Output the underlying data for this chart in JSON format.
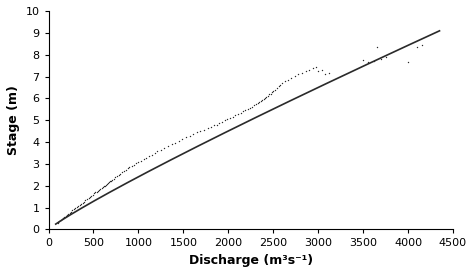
{
  "title": "",
  "xlabel": "Discharge (m³s⁻¹)",
  "ylabel": "Stage (m)",
  "xlim": [
    0,
    4500
  ],
  "ylim": [
    0,
    10
  ],
  "xticks": [
    0,
    500,
    1000,
    1500,
    2000,
    2500,
    3000,
    3500,
    4000,
    4500
  ],
  "yticks": [
    0,
    1,
    2,
    3,
    4,
    5,
    6,
    7,
    8,
    9,
    10
  ],
  "curve_color": "#2a2a2a",
  "scatter_color": "#2a2a2a",
  "background_color": "#ffffff",
  "power_a": 0.00471,
  "power_b": 0.903,
  "scatter_data": [
    [
      100,
      0.3
    ],
    [
      110,
      0.34
    ],
    [
      120,
      0.38
    ],
    [
      135,
      0.43
    ],
    [
      150,
      0.48
    ],
    [
      160,
      0.52
    ],
    [
      175,
      0.57
    ],
    [
      190,
      0.62
    ],
    [
      205,
      0.67
    ],
    [
      220,
      0.72
    ],
    [
      235,
      0.77
    ],
    [
      250,
      0.82
    ],
    [
      265,
      0.87
    ],
    [
      280,
      0.92
    ],
    [
      300,
      0.98
    ],
    [
      315,
      1.03
    ],
    [
      330,
      1.08
    ],
    [
      350,
      1.14
    ],
    [
      365,
      1.18
    ],
    [
      380,
      1.23
    ],
    [
      395,
      1.28
    ],
    [
      410,
      1.33
    ],
    [
      430,
      1.4
    ],
    [
      445,
      1.45
    ],
    [
      460,
      1.5
    ],
    [
      475,
      1.55
    ],
    [
      490,
      1.6
    ],
    [
      505,
      1.65
    ],
    [
      520,
      1.7
    ],
    [
      535,
      1.72
    ],
    [
      550,
      1.78
    ],
    [
      565,
      1.8
    ],
    [
      575,
      1.83
    ],
    [
      590,
      1.88
    ],
    [
      605,
      1.93
    ],
    [
      615,
      1.97
    ],
    [
      625,
      2.0
    ],
    [
      635,
      2.04
    ],
    [
      645,
      2.07
    ],
    [
      660,
      2.12
    ],
    [
      675,
      2.18
    ],
    [
      685,
      2.2
    ],
    [
      695,
      2.24
    ],
    [
      710,
      2.28
    ],
    [
      725,
      2.33
    ],
    [
      740,
      2.38
    ],
    [
      760,
      2.44
    ],
    [
      780,
      2.5
    ],
    [
      800,
      2.56
    ],
    [
      820,
      2.62
    ],
    [
      840,
      2.68
    ],
    [
      860,
      2.74
    ],
    [
      880,
      2.8
    ],
    [
      900,
      2.86
    ],
    [
      925,
      2.9
    ],
    [
      950,
      2.97
    ],
    [
      975,
      3.02
    ],
    [
      1000,
      3.08
    ],
    [
      1030,
      3.15
    ],
    [
      1060,
      3.22
    ],
    [
      1090,
      3.29
    ],
    [
      1120,
      3.36
    ],
    [
      1150,
      3.43
    ],
    [
      1180,
      3.5
    ],
    [
      1210,
      3.57
    ],
    [
      1250,
      3.65
    ],
    [
      1290,
      3.73
    ],
    [
      1330,
      3.81
    ],
    [
      1370,
      3.89
    ],
    [
      1410,
      3.97
    ],
    [
      1450,
      4.05
    ],
    [
      1490,
      4.13
    ],
    [
      1530,
      4.21
    ],
    [
      1570,
      4.29
    ],
    [
      1610,
      4.36
    ],
    [
      1650,
      4.44
    ],
    [
      1690,
      4.5
    ],
    [
      1730,
      4.57
    ],
    [
      1770,
      4.64
    ],
    [
      1810,
      4.71
    ],
    [
      1840,
      4.76
    ],
    [
      1870,
      4.8
    ],
    [
      1900,
      4.87
    ],
    [
      1930,
      4.92
    ],
    [
      1960,
      5.0
    ],
    [
      1990,
      5.05
    ],
    [
      2020,
      5.1
    ],
    [
      2050,
      5.15
    ],
    [
      2080,
      5.22
    ],
    [
      2110,
      5.28
    ],
    [
      2140,
      5.35
    ],
    [
      2165,
      5.4
    ],
    [
      2190,
      5.45
    ],
    [
      2215,
      5.52
    ],
    [
      2240,
      5.57
    ],
    [
      2265,
      5.62
    ],
    [
      2285,
      5.68
    ],
    [
      2305,
      5.72
    ],
    [
      2325,
      5.78
    ],
    [
      2345,
      5.83
    ],
    [
      2360,
      5.88
    ],
    [
      2380,
      5.92
    ],
    [
      2395,
      5.98
    ],
    [
      2410,
      6.02
    ],
    [
      2425,
      6.08
    ],
    [
      2440,
      6.12
    ],
    [
      2455,
      6.18
    ],
    [
      2470,
      6.22
    ],
    [
      2485,
      6.28
    ],
    [
      2500,
      6.33
    ],
    [
      2520,
      6.4
    ],
    [
      2540,
      6.48
    ],
    [
      2560,
      6.55
    ],
    [
      2580,
      6.62
    ],
    [
      2600,
      6.7
    ],
    [
      2630,
      6.78
    ],
    [
      2660,
      6.86
    ],
    [
      2700,
      6.95
    ],
    [
      2740,
      7.02
    ],
    [
      2780,
      7.1
    ],
    [
      2820,
      7.18
    ],
    [
      2860,
      7.25
    ],
    [
      2900,
      7.32
    ],
    [
      2940,
      7.38
    ],
    [
      2980,
      7.45
    ],
    [
      3000,
      7.25
    ],
    [
      3040,
      7.3
    ],
    [
      3080,
      7.1
    ],
    [
      3120,
      7.15
    ],
    [
      3500,
      7.75
    ],
    [
      3550,
      7.65
    ],
    [
      3620,
      7.7
    ],
    [
      3650,
      8.35
    ],
    [
      3700,
      7.8
    ],
    [
      3750,
      7.9
    ],
    [
      4000,
      7.65
    ],
    [
      4100,
      8.35
    ],
    [
      4150,
      8.42
    ]
  ],
  "curve_x_start": 80,
  "curve_x_end": 4350,
  "marker_size": 4,
  "linewidth": 1.2
}
